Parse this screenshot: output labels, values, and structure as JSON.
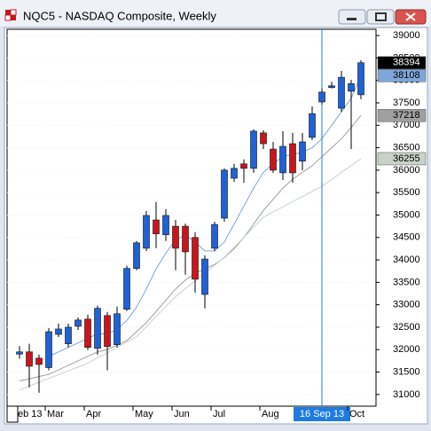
{
  "chart_data": {
    "type": "candlestick",
    "title": "NQC5 - NASDAQ Composite, Weekly",
    "categories": [
      "eb 13",
      null,
      null,
      "Mar",
      null,
      null,
      null,
      "Apr",
      null,
      null,
      null,
      null,
      "May",
      null,
      null,
      null,
      "Jun",
      null,
      null,
      null,
      "Jul",
      null,
      null,
      null,
      null,
      "Aug",
      null,
      null,
      null,
      null,
      null,
      "16 Sep 13",
      null,
      null,
      "Oct",
      null
    ],
    "open": [
      31900,
      31950,
      31810,
      31600,
      32340,
      32130,
      32520,
      32680,
      32030,
      32760,
      32110,
      32900,
      33810,
      34260,
      34890,
      34560,
      34750,
      34750,
      34500,
      33230,
      34260,
      34930,
      35820,
      36140,
      36040,
      36830,
      36470,
      35940,
      36590,
      36200,
      36730,
      37520,
      37840,
      37380,
      37760,
      37680
    ],
    "high": [
      32080,
      32130,
      31890,
      32480,
      32580,
      32580,
      32720,
      32780,
      32980,
      32840,
      32960,
      33870,
      34420,
      35090,
      35290,
      35130,
      34890,
      34810,
      34620,
      34100,
      34850,
      36040,
      36140,
      36240,
      36910,
      36890,
      36630,
      36870,
      36830,
      36830,
      37420,
      37820,
      37970,
      38210,
      38010,
      38450
    ],
    "low": [
      31800,
      31160,
      31040,
      31540,
      32280,
      32050,
      32440,
      31990,
      31890,
      31540,
      32050,
      32860,
      33770,
      34200,
      34260,
      34420,
      33770,
      33670,
      33270,
      32920,
      34200,
      34850,
      35740,
      35720,
      35940,
      36470,
      35940,
      35780,
      35720,
      36000,
      36670,
      37460,
      37820,
      37300,
      36470,
      37580
    ],
    "close": [
      31950,
      31630,
      31670,
      32400,
      32460,
      32500,
      32660,
      32050,
      32920,
      32070,
      32800,
      33810,
      34380,
      34990,
      34580,
      34990,
      34260,
      34180,
      33570,
      34020,
      34790,
      36000,
      36040,
      36040,
      36870,
      36590,
      36000,
      36530,
      35940,
      36630,
      37260,
      37740,
      37880,
      38070,
      37930,
      38394
    ],
    "up_color": "#1e62d6",
    "down_color": "#c8161d",
    "last_label_color": "#000000",
    "overlays": [
      {
        "color": "#7fa6d8",
        "values": [
          null,
          null,
          null,
          31850,
          31950,
          32050,
          32150,
          32250,
          32350,
          32350,
          32450,
          32650,
          32950,
          33350,
          33800,
          34150,
          34450,
          34550,
          34400,
          34200,
          34200,
          34400,
          34800,
          35200,
          35600,
          35950,
          36150,
          36300,
          36350,
          36400,
          36500,
          36700,
          37000,
          37300,
          37600,
          38108
        ]
      },
      {
        "color": "#a0a0a0",
        "values": [
          31300,
          31350,
          31400,
          31450,
          31550,
          31650,
          31750,
          31850,
          31950,
          32000,
          32100,
          32200,
          32400,
          32600,
          32850,
          33100,
          33350,
          33550,
          33700,
          33800,
          33900,
          34050,
          34250,
          34500,
          34800,
          35100,
          35350,
          35600,
          35800,
          35950,
          36100,
          36300,
          36500,
          36700,
          36950,
          37218
        ]
      },
      {
        "color": "#c8d2c8",
        "values": [
          31100,
          31190,
          31270,
          31360,
          31440,
          31530,
          31610,
          31700,
          31820,
          31930,
          32050,
          32170,
          32290,
          32510,
          32740,
          32960,
          33180,
          33360,
          33530,
          33710,
          33880,
          34060,
          34280,
          34500,
          34730,
          34950,
          35070,
          35180,
          35300,
          35410,
          35530,
          35640,
          35790,
          35950,
          36100,
          36255
        ]
      }
    ],
    "highlight_category": 31,
    "highlight_color": "#1e7ce0",
    "ylim": [
      30740,
      39140
    ],
    "yticks": [
      31000,
      31500,
      32000,
      32500,
      33000,
      33500,
      34000,
      34500,
      35000,
      35500,
      36000,
      36500,
      37000,
      37500,
      38000,
      38500,
      39000
    ],
    "grid": true
  }
}
